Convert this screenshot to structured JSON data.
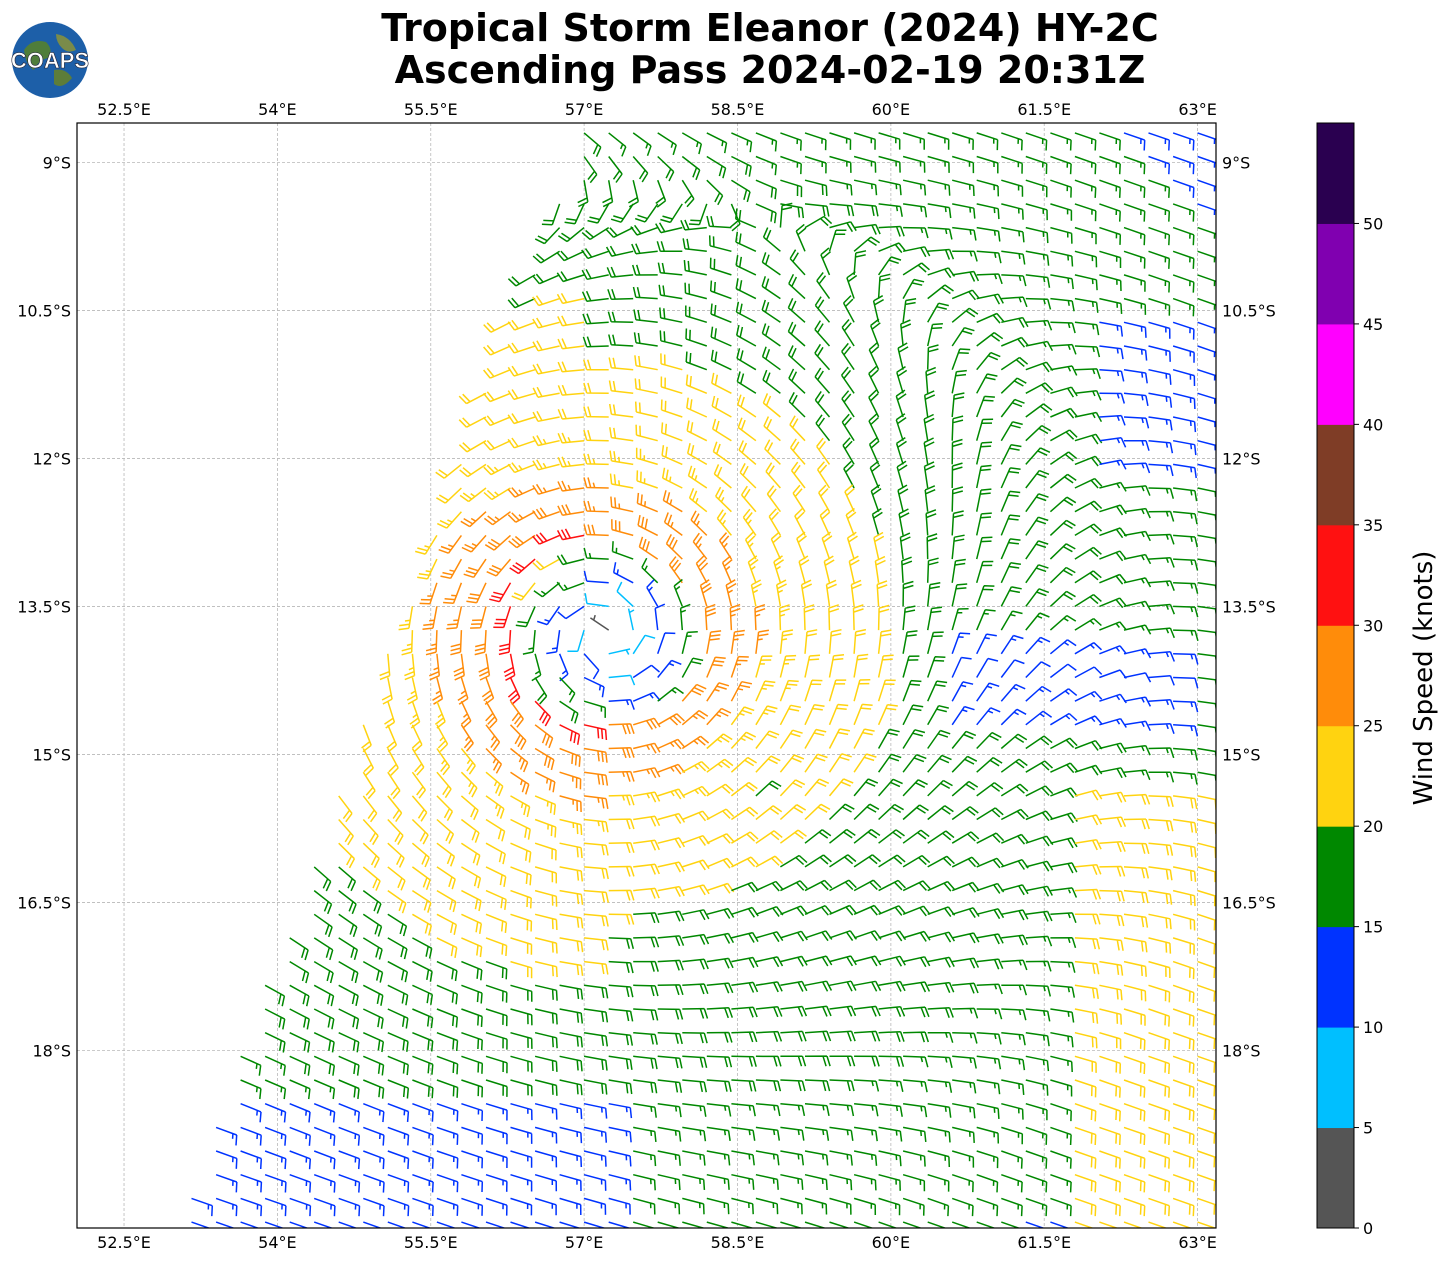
{
  "header": {
    "title_line1": "Tropical Storm Eleanor (2024) HY-2C",
    "title_line2": "Ascending Pass 2024-02-19 20:31Z",
    "logo_text": "COAPS"
  },
  "map": {
    "lon_ticks": [
      "52.5°E",
      "54°E",
      "55.5°E",
      "57°E",
      "58.5°E",
      "60°E",
      "61.5°E",
      "63°E"
    ],
    "lat_ticks": [
      "9°S",
      "10.5°S",
      "12°S",
      "13.5°S",
      "15°S",
      "16.5°S",
      "18°S"
    ],
    "lon_range": [
      52.04,
      63.18
    ],
    "lat_range": [
      -19.8,
      -8.6
    ],
    "gridlines": true,
    "storm_center": {
      "lon": 57.2,
      "lat": -13.8
    },
    "swath_edge_note": "data swath bounded on the west from (57.0E, 8.6S) to (53.0E, 19.8S)"
  },
  "colorbar": {
    "label": "Wind Speed (knots)",
    "tick_labels": [
      "0",
      "5",
      "10",
      "15",
      "20",
      "25",
      "30",
      "35",
      "40",
      "45",
      "50"
    ],
    "bins": [
      {
        "min": 0,
        "max": 5,
        "color": "#555555"
      },
      {
        "min": 5,
        "max": 10,
        "color": "#00bfff"
      },
      {
        "min": 10,
        "max": 15,
        "color": "#0033ff"
      },
      {
        "min": 15,
        "max": 20,
        "color": "#008800"
      },
      {
        "min": 20,
        "max": 25,
        "color": "#ffd310"
      },
      {
        "min": 25,
        "max": 30,
        "color": "#ff8c0a"
      },
      {
        "min": 30,
        "max": 35,
        "color": "#ff1111"
      },
      {
        "min": 35,
        "max": 40,
        "color": "#7f3d26"
      },
      {
        "min": 40,
        "max": 45,
        "color": "#ff00ff"
      },
      {
        "min": 45,
        "max": 50,
        "color": "#8000b0"
      },
      {
        "min": 50,
        "max": 55,
        "color": "#2a0050"
      }
    ]
  }
}
